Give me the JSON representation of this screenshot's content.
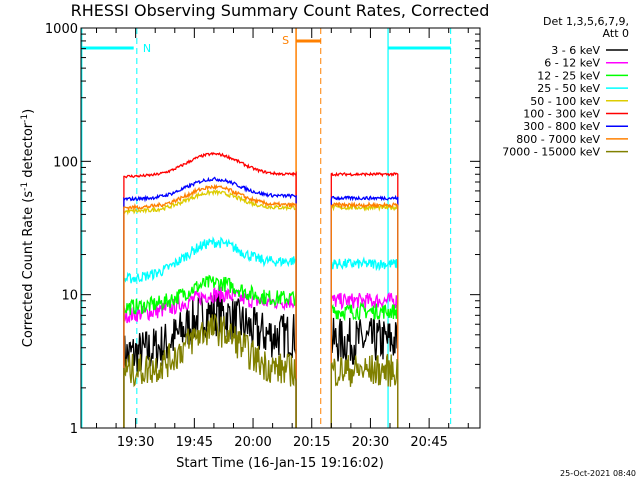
{
  "chart_data": {
    "type": "line",
    "title": "RHESSI Observing Summary Count Rates, Corrected",
    "xlabel": "Start Time (16-Jan-15 19:16:02)",
    "ylabel_main": "Corrected Count Rate (s",
    "ylabel_sup1": "-1",
    "ylabel_mid": " detector",
    "ylabel_sup2": "-1",
    "ylabel_end": ")",
    "yscale": "log",
    "ylim": [
      1,
      1000
    ],
    "xlim_minutes": [
      "19:16",
      "20:58"
    ],
    "ytick_labels": [
      "1",
      "10",
      "100",
      "1000"
    ],
    "xtick_labels": [
      "19:30",
      "19:45",
      "20:00",
      "20:15",
      "20:30",
      "20:45"
    ],
    "legend_header": [
      "Det 1,3,5,6,7,9,",
      "Att 0"
    ],
    "legend_placement": "top-right",
    "markers": [
      {
        "label": "N",
        "color": "#00ffff"
      },
      {
        "label": "S",
        "color": "#ff8000"
      }
    ],
    "series": [
      {
        "name": "3 - 6 keV",
        "color": "#000000"
      },
      {
        "name": "6 - 12 keV",
        "color": "#ff00ff"
      },
      {
        "name": "12 - 25 keV",
        "color": "#00ff00"
      },
      {
        "name": "25 - 50 keV",
        "color": "#00ffff"
      },
      {
        "name": "50 - 100 keV",
        "color": "#ddcc00"
      },
      {
        "name": "100 - 300 keV",
        "color": "#ff0000"
      },
      {
        "name": "300 - 800 keV",
        "color": "#0000ff"
      },
      {
        "name": "800 - 7000 keV",
        "color": "#ff8000"
      },
      {
        "name": "7000 - 15000 keV",
        "color": "#808000"
      }
    ],
    "segments": [
      {
        "start": "19:27",
        "end": "20:11"
      },
      {
        "start": "20:20",
        "end": "20:37"
      }
    ],
    "levels": {
      "3 - 6 keV": {
        "seg1_start": 3.5,
        "seg1_peak": 8,
        "seg1_end": 5,
        "seg2": 4.5
      },
      "6 - 12 keV": {
        "seg1_start": 7,
        "seg1_peak": 11,
        "seg1_end": 9,
        "seg2": 9
      },
      "12 - 25 keV": {
        "seg1_start": 8,
        "seg1_peak": 13,
        "seg1_end": 9.5,
        "seg2": 7.5
      },
      "25 - 50 keV": {
        "seg1_start": 13,
        "seg1_peak": 27,
        "seg1_end": 18,
        "seg2": 17
      },
      "50 - 100 keV": {
        "seg1_start": 42,
        "seg1_peak": 60,
        "seg1_end": 45,
        "seg2": 45
      },
      "100 - 300 keV": {
        "seg1_start": 77,
        "seg1_peak": 115,
        "seg1_end": 80,
        "seg2": 80
      },
      "300 - 800 keV": {
        "seg1_start": 52,
        "seg1_peak": 75,
        "seg1_end": 55,
        "seg2": 53
      },
      "800 - 7000 keV": {
        "seg1_start": 45,
        "seg1_peak": 65,
        "seg1_end": 47,
        "seg2": 47
      },
      "7000 - 15000 keV": {
        "seg1_start": 2.7,
        "seg1_peak": 5.5,
        "seg1_end": 2.7,
        "seg2": 2.7
      }
    }
  },
  "footer_timestamp": "25-Oct-2021 08:40"
}
